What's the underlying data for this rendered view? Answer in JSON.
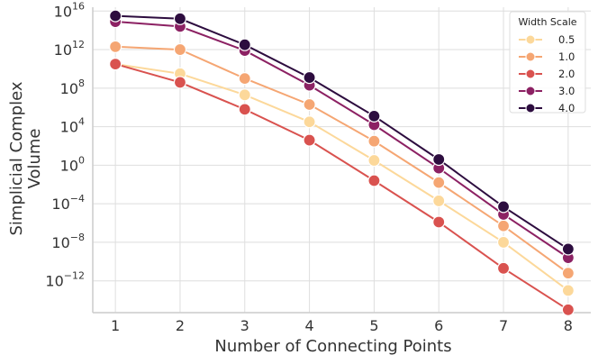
{
  "chart_data": {
    "type": "line",
    "xlabel": "Number of Connecting Points",
    "ylabel_lines": [
      "Simplicial Complex",
      "Volume"
    ],
    "y_scale": "log",
    "x": [
      1,
      2,
      3,
      4,
      5,
      6,
      7,
      8
    ],
    "x_ticks": [
      "1",
      "2",
      "3",
      "4",
      "5",
      "6",
      "7",
      "8"
    ],
    "y_ticks": [
      {
        "base": "10",
        "exp": "16",
        "value": 1e+16
      },
      {
        "base": "10",
        "exp": "12",
        "value": 1000000000000.0
      },
      {
        "base": "10",
        "exp": "8",
        "value": 100000000.0
      },
      {
        "base": "10",
        "exp": "4",
        "value": 10000.0
      },
      {
        "base": "10",
        "exp": "0",
        "value": 1
      },
      {
        "base": "10",
        "exp": "−4",
        "value": 0.0001
      },
      {
        "base": "10",
        "exp": "−8",
        "value": 1e-08
      },
      {
        "base": "10",
        "exp": "−12",
        "value": 1e-12
      }
    ],
    "xlim": [
      0.65,
      8.35
    ],
    "ylim_log10": [
      -15.3,
      16.4
    ],
    "grid": true,
    "legend": {
      "title": "Width Scale",
      "position": "top-right"
    },
    "series": [
      {
        "name": "0.5",
        "color": "#fcd89a",
        "log10_values": [
          10.5,
          9.5,
          7.3,
          4.5,
          0.5,
          -3.7,
          -8.0,
          -13.0
        ]
      },
      {
        "name": "1.0",
        "color": "#f5a673",
        "log10_values": [
          12.3,
          12.0,
          9.0,
          6.3,
          2.5,
          -1.8,
          -6.3,
          -11.2
        ]
      },
      {
        "name": "2.0",
        "color": "#d9524f",
        "log10_values": [
          10.5,
          8.6,
          5.8,
          2.6,
          -1.6,
          -5.9,
          -10.7,
          -15.0
        ]
      },
      {
        "name": "3.0",
        "color": "#8c2163",
        "log10_values": [
          14.9,
          14.4,
          11.9,
          8.3,
          4.2,
          -0.3,
          -5.1,
          -9.6
        ]
      },
      {
        "name": "4.0",
        "color": "#2d0d3f",
        "log10_values": [
          15.5,
          15.2,
          12.5,
          9.1,
          5.1,
          0.6,
          -4.3,
          -8.7
        ]
      }
    ]
  }
}
